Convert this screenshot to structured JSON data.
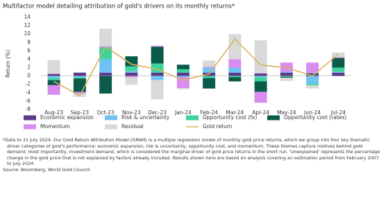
{
  "chart_data": {
    "type": "bar",
    "title": "Multifactor model detailing attribution of gold's drivers on its monthly returns*",
    "y_label": "Return (%)",
    "categories": [
      "Aug-23",
      "Sep-23",
      "Oct-23",
      "Nov-23",
      "Dec-23",
      "Jan-24",
      "Feb-24",
      "Mar-24",
      "Apr-24",
      "May-24",
      "Jun-24",
      "Jul-24"
    ],
    "series": [
      {
        "name": "Economic expansion",
        "color": "#5b3a8e",
        "values": [
          0.5,
          0.8,
          0.8,
          0.8,
          0.8,
          0.8,
          0.8,
          0.8,
          0.6,
          0.8,
          0.3,
          0.8
        ]
      },
      {
        "name": "Risk & uncertainty",
        "color": "#6fc3f2",
        "values": [
          -0.5,
          -0.3,
          3.2,
          0.4,
          -1.0,
          -0.3,
          1.2,
          1.2,
          -0.3,
          0.2,
          -1.9,
          0.2
        ]
      },
      {
        "name": "Opportunity cost (fx)",
        "color": "#3dd39b",
        "values": [
          -0.5,
          -0.3,
          2.8,
          1.1,
          2.2,
          0.8,
          -0.5,
          -0.3,
          -1.0,
          -0.2,
          -0.3,
          1.0
        ]
      },
      {
        "name": "Opportunity cost (rates)",
        "color": "#0b5b4b",
        "values": [
          -1.2,
          -3.2,
          -4.2,
          2.4,
          4.0,
          1.1,
          -2.5,
          -1.0,
          -2.5,
          -0.2,
          0.3,
          2.3
        ]
      },
      {
        "name": "Momentum",
        "color": "#d98cf0",
        "values": [
          -2.3,
          -0.4,
          0.3,
          -0.3,
          0.2,
          -2.6,
          0.2,
          2.0,
          -2.6,
          2.2,
          2.6,
          0.2
        ]
      },
      {
        "name": "Residual",
        "color": "#d9d9d9",
        "values": [
          3.3,
          -0.8,
          4.2,
          -1.8,
          -4.6,
          -0.3,
          1.5,
          6.0,
          7.9,
          -0.8,
          -0.8,
          1.1
        ]
      },
      {
        "name": "Gold return",
        "color": "#d8b25c",
        "type": "line",
        "values": [
          -1.3,
          -4.7,
          7.0,
          2.8,
          1.6,
          -1.0,
          0.5,
          8.8,
          2.6,
          2.0,
          0.0,
          5.2
        ]
      }
    ],
    "ylim": [
      -8,
      14
    ],
    "yticks": [
      -8,
      -6,
      -4,
      -2,
      0,
      2,
      4,
      6,
      8,
      10,
      12,
      14
    ],
    "grid": false,
    "footnote": "*Data to 31 July 2024. Our Gold Return Attribution Model (GRAM) is a multiple regression model of monthly gold price returns, which we group into four key thematic driver categories of gold's performance: economic expansion, risk & uncertainty, opportunity cost, and momentum. These themes capture motives behind gold demand; most importantly, investment demand, which is considered the marginal driver of gold price returns in the short run. 'Unexplained' represents the percentage change in the gold price that is not explained by factors already included. Results shown here are based on analysis covering an estimation period from February 2007 to July 2024.",
    "source": "Source: Bloomberg, World Gold Council"
  }
}
